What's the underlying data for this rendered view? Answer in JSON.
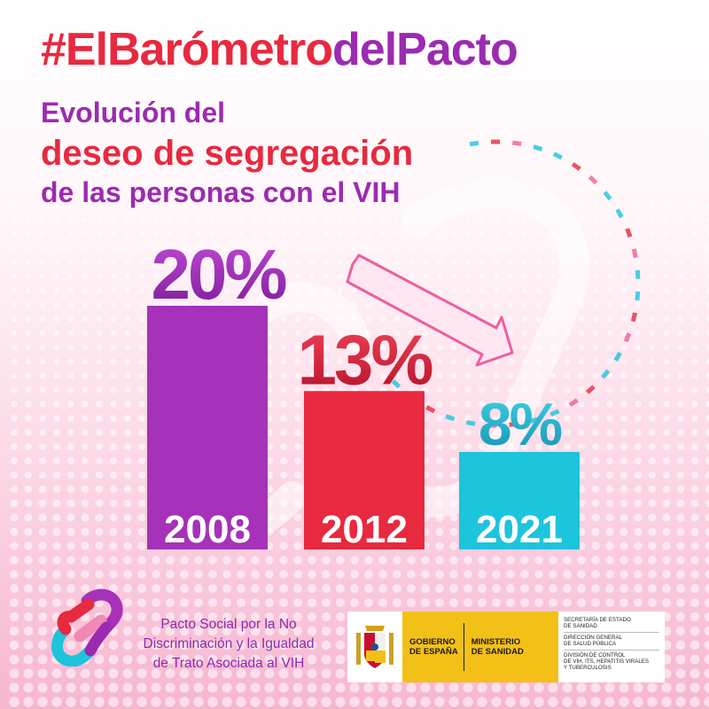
{
  "title": {
    "hashtag_parts": [
      {
        "text": "#El",
        "color": "#e8293f"
      },
      {
        "text": "Barómetro",
        "color": "#e8293f"
      },
      {
        "text": "del",
        "color": "#9b2bb0"
      },
      {
        "text": "Pacto",
        "color": "#9b2bb0"
      }
    ],
    "line1": "Evolución del",
    "line2": "deseo de segregación",
    "line3": "de las personas con el VIH"
  },
  "chart_data": {
    "type": "bar",
    "categories": [
      "2008",
      "2012",
      "2021"
    ],
    "values": [
      20,
      13,
      8
    ],
    "value_labels": [
      "20%",
      "13%",
      "8%"
    ],
    "colors": [
      "#a532b8",
      "#e8293f",
      "#1cc4dc"
    ],
    "label_gradients": [
      [
        "#c24ad8",
        "#7a1c96"
      ],
      [
        "#f04458",
        "#b5102a"
      ],
      [
        "#3fd0e6",
        "#1494b0"
      ]
    ],
    "title": "",
    "xlabel": "",
    "ylabel": "",
    "grid": false,
    "legend": "none"
  },
  "footer": {
    "pact_lines": [
      "Pacto Social por la No",
      "Discriminación y la Igualdad",
      "de Trato Asociada al VIH"
    ],
    "gov": {
      "col1": [
        "GOBIERNO",
        "DE ESPAÑA"
      ],
      "col2": [
        "MINISTERIO",
        "DE SANIDAD"
      ],
      "right": [
        [
          "SECRETARÍA DE ESTADO",
          "DE SANIDAD"
        ],
        [
          "DIRECCIÓN GENERAL",
          "DE SALUD PÚBLICA"
        ],
        [
          "DIVISIÓN DE CONTROL",
          "DE VIH, ITS, HEPATITIS VIRALES",
          "Y TUBERCULOSIS"
        ]
      ]
    }
  },
  "icons": [
    "chain-link-logo-icon",
    "spanish-coat-of-arms-icon",
    "trend-down-arrow-icon"
  ]
}
